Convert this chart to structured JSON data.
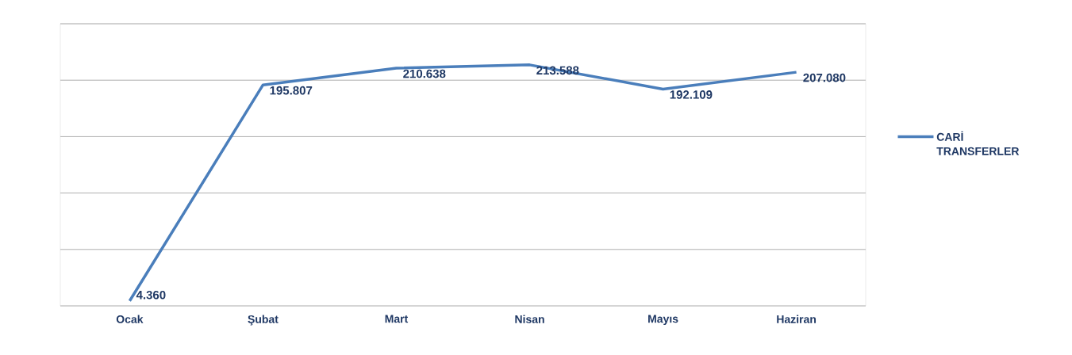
{
  "chart_data": {
    "type": "line",
    "categories": [
      "Ocak",
      "Şubat",
      "Mart",
      "Nisan",
      "Mayıs",
      "Haziran"
    ],
    "series": [
      {
        "name": "CARİ TRANSFERLER",
        "color": "#4a7ebb",
        "values": [
          4360,
          195807,
          210638,
          213588,
          192109,
          207080
        ],
        "value_labels": [
          "4.360",
          "195.807",
          "210.638",
          "213.588",
          "192.109",
          "207.080"
        ]
      }
    ],
    "ylim": [
      0,
      250000
    ],
    "yticks": [
      {
        "value": 0,
        "label": null
      },
      {
        "value": 50000,
        "label": null
      },
      {
        "value": 100000,
        "label": null
      },
      {
        "value": 150000,
        "label": null
      },
      {
        "value": 200000,
        "label": null
      },
      {
        "value": 250000,
        "label": null
      }
    ],
    "tick_labels": "x",
    "grid": "y",
    "legend": "right",
    "marker": "none",
    "line_style": "solid"
  }
}
